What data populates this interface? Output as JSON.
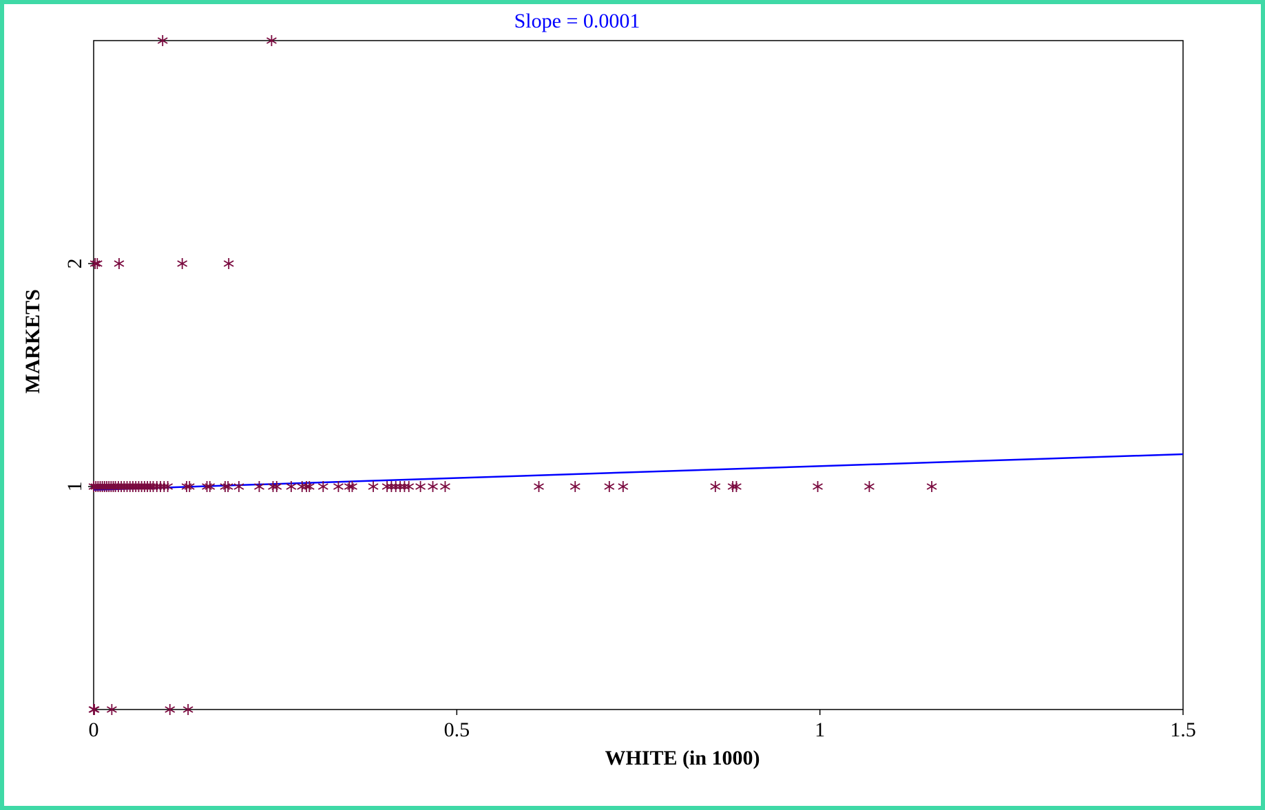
{
  "colors": {
    "frame": "#3fd9a6",
    "points": "#7a0a3f",
    "fit_line": "#0000ff",
    "title": "#0000ff",
    "axes": "#000000"
  },
  "chart_data": {
    "type": "scatter",
    "title": "Slope = 0.0001",
    "xlabel": "WHITE (in 1000)",
    "ylabel": "MARKETS",
    "xlim": [
      0,
      1.5
    ],
    "ylim": [
      0,
      3
    ],
    "x_ticks": [
      {
        "value": 0,
        "label": "0"
      },
      {
        "value": 0.5,
        "label": "0.5"
      },
      {
        "value": 1,
        "label": "1"
      },
      {
        "value": 1.5,
        "label": "1.5"
      }
    ],
    "y_ticks": [
      {
        "value": 1,
        "label": "1"
      },
      {
        "value": 2,
        "label": "2"
      }
    ],
    "grid": false,
    "marker": "asterisk",
    "fit_line": {
      "slope": 0.0001,
      "x_units_per_1000": true,
      "start": [
        0,
        0.985
      ],
      "end": [
        1.5,
        1.145
      ]
    },
    "points": [
      {
        "x": 0.095,
        "y": 3
      },
      {
        "x": 0.245,
        "y": 3
      },
      {
        "x": 0.002,
        "y": 2
      },
      {
        "x": 0.005,
        "y": 2
      },
      {
        "x": 0.035,
        "y": 2
      },
      {
        "x": 0.122,
        "y": 2
      },
      {
        "x": 0.186,
        "y": 2
      },
      {
        "x": 0.0,
        "y": 0
      },
      {
        "x": 0.001,
        "y": 0
      },
      {
        "x": 0.025,
        "y": 0
      },
      {
        "x": 0.105,
        "y": 0
      },
      {
        "x": 0.13,
        "y": 0
      },
      {
        "x": 0.0,
        "y": 1
      },
      {
        "x": 0.003,
        "y": 1
      },
      {
        "x": 0.006,
        "y": 1
      },
      {
        "x": 0.009,
        "y": 1
      },
      {
        "x": 0.012,
        "y": 1
      },
      {
        "x": 0.015,
        "y": 1
      },
      {
        "x": 0.018,
        "y": 1
      },
      {
        "x": 0.021,
        "y": 1
      },
      {
        "x": 0.024,
        "y": 1
      },
      {
        "x": 0.027,
        "y": 1
      },
      {
        "x": 0.03,
        "y": 1
      },
      {
        "x": 0.034,
        "y": 1
      },
      {
        "x": 0.038,
        "y": 1
      },
      {
        "x": 0.042,
        "y": 1
      },
      {
        "x": 0.046,
        "y": 1
      },
      {
        "x": 0.05,
        "y": 1
      },
      {
        "x": 0.054,
        "y": 1
      },
      {
        "x": 0.058,
        "y": 1
      },
      {
        "x": 0.062,
        "y": 1
      },
      {
        "x": 0.066,
        "y": 1
      },
      {
        "x": 0.07,
        "y": 1
      },
      {
        "x": 0.074,
        "y": 1
      },
      {
        "x": 0.078,
        "y": 1
      },
      {
        "x": 0.082,
        "y": 1
      },
      {
        "x": 0.087,
        "y": 1
      },
      {
        "x": 0.092,
        "y": 1
      },
      {
        "x": 0.097,
        "y": 1
      },
      {
        "x": 0.102,
        "y": 1
      },
      {
        "x": 0.128,
        "y": 1
      },
      {
        "x": 0.132,
        "y": 1
      },
      {
        "x": 0.156,
        "y": 1
      },
      {
        "x": 0.16,
        "y": 1
      },
      {
        "x": 0.181,
        "y": 1
      },
      {
        "x": 0.185,
        "y": 1
      },
      {
        "x": 0.2,
        "y": 1
      },
      {
        "x": 0.228,
        "y": 1
      },
      {
        "x": 0.247,
        "y": 1
      },
      {
        "x": 0.252,
        "y": 1
      },
      {
        "x": 0.272,
        "y": 1
      },
      {
        "x": 0.287,
        "y": 1
      },
      {
        "x": 0.293,
        "y": 1
      },
      {
        "x": 0.297,
        "y": 1
      },
      {
        "x": 0.316,
        "y": 1
      },
      {
        "x": 0.337,
        "y": 1
      },
      {
        "x": 0.352,
        "y": 1
      },
      {
        "x": 0.356,
        "y": 1
      },
      {
        "x": 0.385,
        "y": 1
      },
      {
        "x": 0.404,
        "y": 1
      },
      {
        "x": 0.41,
        "y": 1
      },
      {
        "x": 0.416,
        "y": 1
      },
      {
        "x": 0.422,
        "y": 1
      },
      {
        "x": 0.428,
        "y": 1
      },
      {
        "x": 0.434,
        "y": 1
      },
      {
        "x": 0.45,
        "y": 1
      },
      {
        "x": 0.467,
        "y": 1
      },
      {
        "x": 0.484,
        "y": 1
      },
      {
        "x": 0.613,
        "y": 1
      },
      {
        "x": 0.663,
        "y": 1
      },
      {
        "x": 0.71,
        "y": 1
      },
      {
        "x": 0.729,
        "y": 1
      },
      {
        "x": 0.856,
        "y": 1
      },
      {
        "x": 0.88,
        "y": 1
      },
      {
        "x": 0.885,
        "y": 1
      },
      {
        "x": 0.997,
        "y": 1
      },
      {
        "x": 1.068,
        "y": 1
      },
      {
        "x": 1.154,
        "y": 1
      }
    ]
  }
}
